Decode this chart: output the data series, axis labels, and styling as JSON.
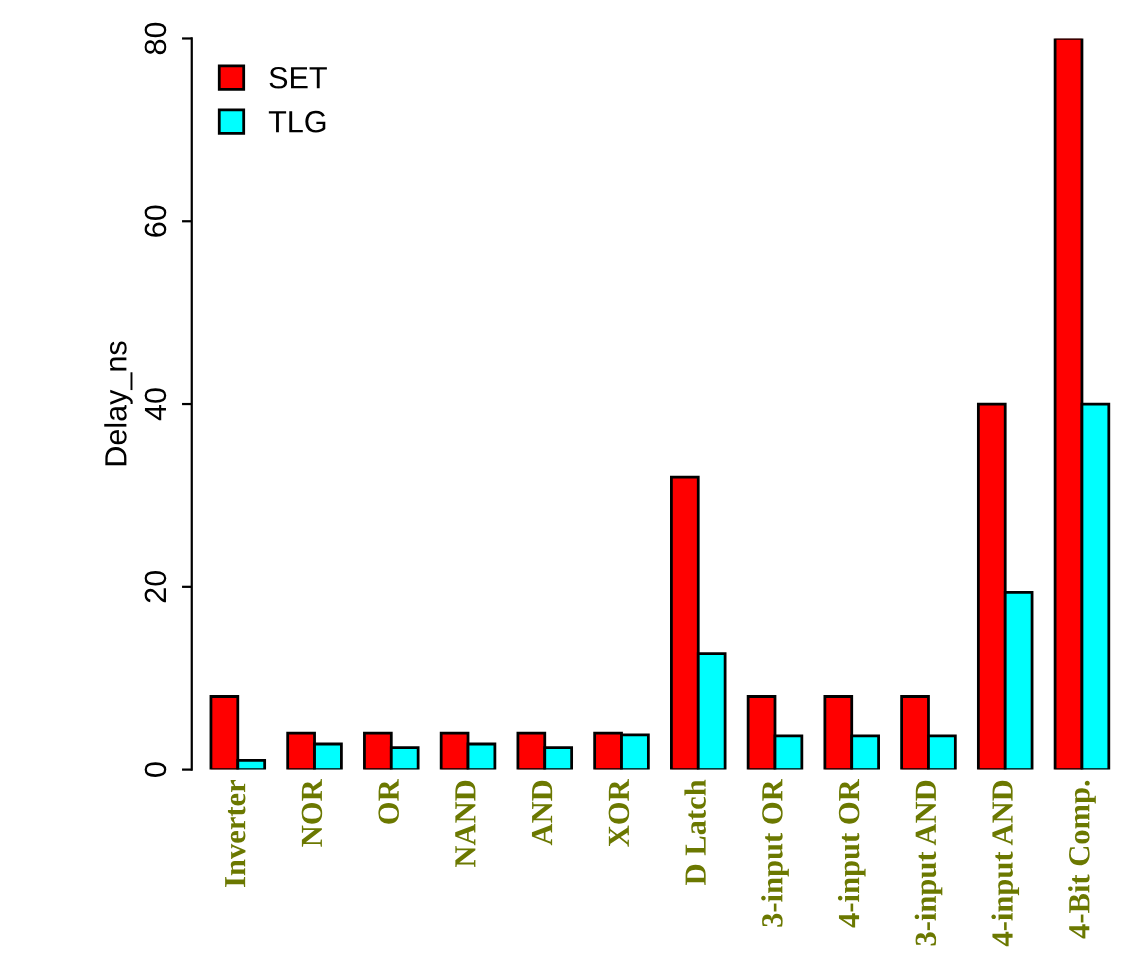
{
  "chart_data": {
    "type": "bar",
    "ylabel": "Delay_ns",
    "categories": [
      "Inverter",
      "NOR",
      "OR",
      "NAND",
      "AND",
      "XOR",
      "D Latch",
      "3-input OR",
      "4-input OR",
      "3-input AND",
      "4-input AND",
      "4-Bit Comp."
    ],
    "series": [
      {
        "name": "SET",
        "color": "#ff0000",
        "values": [
          8,
          4,
          4,
          4,
          4,
          4,
          32,
          8,
          8,
          8,
          40,
          80
        ]
      },
      {
        "name": "TLG",
        "color": "#00ffff",
        "values": [
          1,
          2.8,
          2.4,
          2.8,
          2.4,
          3.8,
          12.7,
          3.7,
          3.7,
          3.7,
          19.4,
          40
        ]
      }
    ],
    "ylim": [
      0,
      80
    ],
    "yticks": [
      0,
      20,
      40,
      60,
      80
    ],
    "grid": false,
    "legend": "top left"
  }
}
